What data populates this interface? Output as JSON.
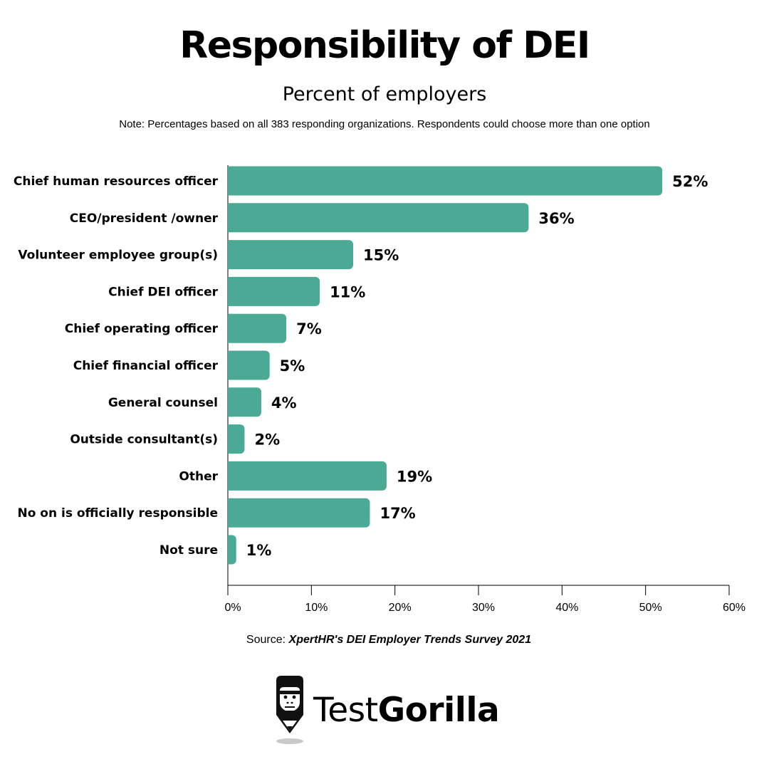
{
  "header": {
    "title": "Responsibility of DEI",
    "subtitle": "Percent of employers",
    "note": "Note: Percentages based on all 383 responding organizations. Respondents could choose more than one option"
  },
  "chart_data": {
    "type": "bar",
    "orientation": "horizontal",
    "categories": [
      "Chief human resources officer",
      "CEO/president /owner",
      "Volunteer employee group(s)",
      "Chief DEI officer",
      "Chief operating officer",
      "Chief financial officer",
      "General counsel",
      "Outside consultant(s)",
      "Other",
      "No on is officially responsible",
      "Not sure"
    ],
    "values": [
      52,
      36,
      15,
      11,
      7,
      5,
      4,
      2,
      19,
      17,
      1
    ],
    "data_labels": [
      "52%",
      "36%",
      "15%",
      "11%",
      "7%",
      "5%",
      "4%",
      "2%",
      "19%",
      "17%",
      "1%"
    ],
    "xlim": [
      0,
      60
    ],
    "x_ticks": [
      0,
      10,
      20,
      30,
      40,
      50,
      60
    ],
    "x_tick_labels": [
      "0%",
      "10%",
      "20%",
      "30%",
      "40%",
      "50%",
      "60%"
    ],
    "bar_color": "#4aaa95",
    "grid": false,
    "legend": "none"
  },
  "footer": {
    "source_prefix": "Source: ",
    "source_title": "XpertHR's DEI Employer Trends Survey 2021"
  },
  "brand": {
    "name_light": "Test",
    "name_bold": "Gorilla",
    "logo_icon": "gorilla-logo-icon"
  }
}
